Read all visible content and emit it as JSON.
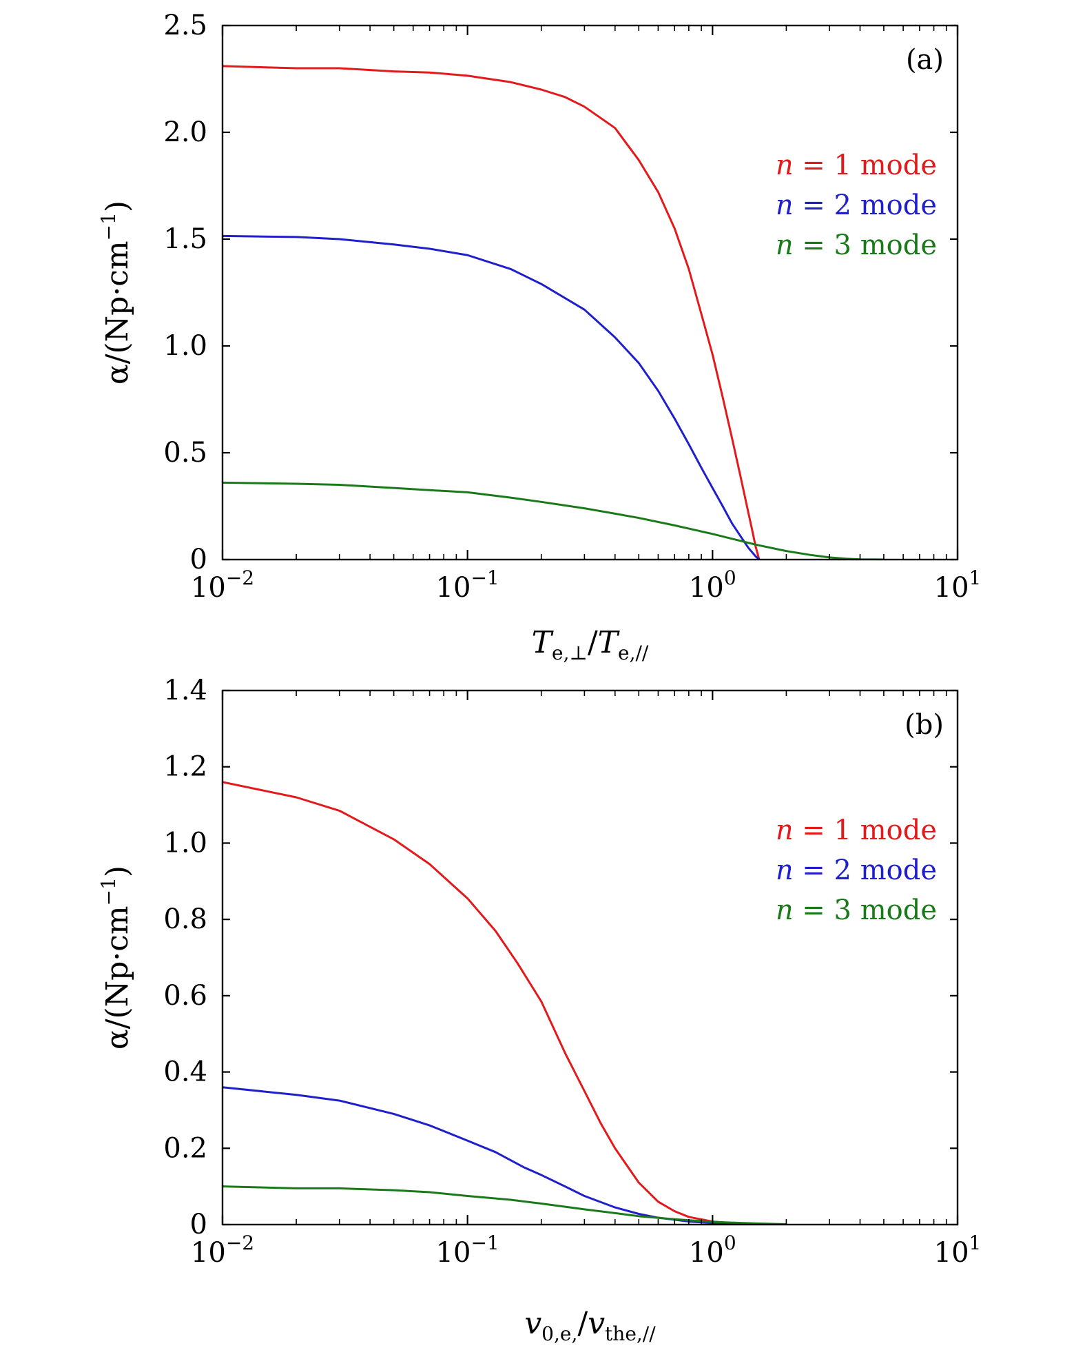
{
  "colors": {
    "n1": "#e31a1c",
    "n2": "#1f1fcc",
    "n3": "#1a7a1a"
  },
  "chart_data": [
    {
      "panel_label": "(a)",
      "type": "line",
      "xscale": "log",
      "xlim": [
        0.01,
        10
      ],
      "ylim": [
        0,
        2.5
      ],
      "grid": false,
      "legend_placement": "upper-right",
      "xlabel": {
        "main": "T",
        "sub1": "e,⊥",
        "slash": "/",
        "main2": "T",
        "sub2": "e,//"
      },
      "ylabel": {
        "pre": "α/(Np·cm",
        "sup": "−1",
        "post": ")"
      },
      "xticks": [
        {
          "value": 0.01,
          "base": "10",
          "exp": "−2"
        },
        {
          "value": 0.1,
          "base": "10",
          "exp": "−1"
        },
        {
          "value": 1,
          "base": "10",
          "exp": "0"
        },
        {
          "value": 10,
          "base": "10",
          "exp": "1"
        }
      ],
      "yticks": [
        {
          "value": 0,
          "label": "0"
        },
        {
          "value": 0.5,
          "label": "0.5"
        },
        {
          "value": 1.0,
          "label": "1.0"
        },
        {
          "value": 1.5,
          "label": "1.5"
        },
        {
          "value": 2.0,
          "label": "2.0"
        },
        {
          "value": 2.5,
          "label": "2.5"
        }
      ],
      "series": [
        {
          "name": "n = 1 mode",
          "legend": {
            "var": "n",
            "eq": " = 1 ",
            "word": "mode"
          },
          "color_key": "n1",
          "x": [
            0.01,
            0.02,
            0.03,
            0.05,
            0.07,
            0.1,
            0.15,
            0.2,
            0.25,
            0.3,
            0.4,
            0.5,
            0.6,
            0.7,
            0.8,
            0.9,
            1.0,
            1.1,
            1.2,
            1.3,
            1.4,
            1.45,
            1.5,
            1.55
          ],
          "y": [
            2.31,
            2.3,
            2.3,
            2.285,
            2.28,
            2.265,
            2.235,
            2.2,
            2.165,
            2.12,
            2.02,
            1.87,
            1.72,
            1.55,
            1.36,
            1.15,
            0.96,
            0.76,
            0.57,
            0.39,
            0.22,
            0.14,
            0.06,
            0.0
          ]
        },
        {
          "name": "n = 2 mode",
          "legend": {
            "var": "n",
            "eq": " = 2 ",
            "word": "mode"
          },
          "color_key": "n2",
          "x": [
            0.01,
            0.02,
            0.03,
            0.05,
            0.07,
            0.1,
            0.15,
            0.2,
            0.3,
            0.4,
            0.5,
            0.6,
            0.7,
            0.8,
            0.9,
            1.0,
            1.1,
            1.2,
            1.3,
            1.4,
            1.5,
            1.55
          ],
          "y": [
            1.515,
            1.51,
            1.5,
            1.475,
            1.455,
            1.425,
            1.36,
            1.29,
            1.17,
            1.04,
            0.92,
            0.79,
            0.66,
            0.54,
            0.43,
            0.335,
            0.25,
            0.17,
            0.11,
            0.055,
            0.015,
            0.0
          ]
        },
        {
          "name": "n = 3 mode",
          "legend": {
            "var": "n",
            "eq": " = 3 ",
            "word": "mode"
          },
          "color_key": "n3",
          "x": [
            0.01,
            0.02,
            0.03,
            0.05,
            0.07,
            0.1,
            0.15,
            0.2,
            0.3,
            0.4,
            0.5,
            0.7,
            1.0,
            1.5,
            2.0,
            2.5,
            3.0,
            3.5,
            4.0,
            5.0
          ],
          "y": [
            0.36,
            0.355,
            0.35,
            0.335,
            0.325,
            0.315,
            0.29,
            0.27,
            0.24,
            0.215,
            0.195,
            0.16,
            0.12,
            0.07,
            0.04,
            0.022,
            0.01,
            0.004,
            0.001,
            0.0
          ]
        }
      ]
    },
    {
      "panel_label": "(b)",
      "type": "line",
      "xscale": "log",
      "xlim": [
        0.01,
        10
      ],
      "ylim": [
        0,
        1.4
      ],
      "grid": false,
      "legend_placement": "upper-right",
      "xlabel": {
        "main": "v",
        "sub1": "0,e,",
        "slash": "/",
        "main2": "v",
        "sub2": "the,//"
      },
      "ylabel": {
        "pre": "α/(Np·cm",
        "sup": "−1",
        "post": ")"
      },
      "xticks": [
        {
          "value": 0.01,
          "base": "10",
          "exp": "−2"
        },
        {
          "value": 0.1,
          "base": "10",
          "exp": "−1"
        },
        {
          "value": 1,
          "base": "10",
          "exp": "0"
        },
        {
          "value": 10,
          "base": "10",
          "exp": "1"
        }
      ],
      "yticks": [
        {
          "value": 0,
          "label": "0"
        },
        {
          "value": 0.2,
          "label": "0.2"
        },
        {
          "value": 0.4,
          "label": "0.4"
        },
        {
          "value": 0.6,
          "label": "0.6"
        },
        {
          "value": 0.8,
          "label": "0.8"
        },
        {
          "value": 1.0,
          "label": "1.0"
        },
        {
          "value": 1.2,
          "label": "1.2"
        },
        {
          "value": 1.4,
          "label": "1.4"
        }
      ],
      "series": [
        {
          "name": "n = 1 mode",
          "legend": {
            "var": "n",
            "eq": " = 1 ",
            "word": "mode"
          },
          "color_key": "n1",
          "x": [
            0.01,
            0.02,
            0.03,
            0.05,
            0.07,
            0.1,
            0.13,
            0.16,
            0.2,
            0.25,
            0.3,
            0.35,
            0.4,
            0.5,
            0.6,
            0.7,
            0.8,
            1.0,
            1.3
          ],
          "y": [
            1.16,
            1.12,
            1.085,
            1.01,
            0.945,
            0.855,
            0.77,
            0.685,
            0.585,
            0.45,
            0.35,
            0.265,
            0.2,
            0.11,
            0.06,
            0.035,
            0.02,
            0.008,
            0.002
          ]
        },
        {
          "name": "n = 2 mode",
          "legend": {
            "var": "n",
            "eq": " = 2 ",
            "word": "mode"
          },
          "color_key": "n2",
          "x": [
            0.01,
            0.02,
            0.03,
            0.05,
            0.07,
            0.1,
            0.13,
            0.17,
            0.2,
            0.25,
            0.3,
            0.4,
            0.5,
            0.6,
            0.8,
            1.0,
            1.3
          ],
          "y": [
            0.36,
            0.34,
            0.325,
            0.29,
            0.26,
            0.22,
            0.19,
            0.15,
            0.13,
            0.1,
            0.075,
            0.045,
            0.028,
            0.018,
            0.008,
            0.004,
            0.001
          ]
        },
        {
          "name": "n = 3 mode",
          "legend": {
            "var": "n",
            "eq": " = 3 ",
            "word": "mode"
          },
          "color_key": "n3",
          "x": [
            0.01,
            0.02,
            0.03,
            0.05,
            0.07,
            0.1,
            0.15,
            0.2,
            0.3,
            0.4,
            0.5,
            0.7,
            1.0,
            1.5,
            2.0
          ],
          "y": [
            0.1,
            0.095,
            0.095,
            0.09,
            0.085,
            0.075,
            0.065,
            0.055,
            0.04,
            0.03,
            0.022,
            0.014,
            0.007,
            0.003,
            0.001
          ]
        }
      ]
    }
  ]
}
